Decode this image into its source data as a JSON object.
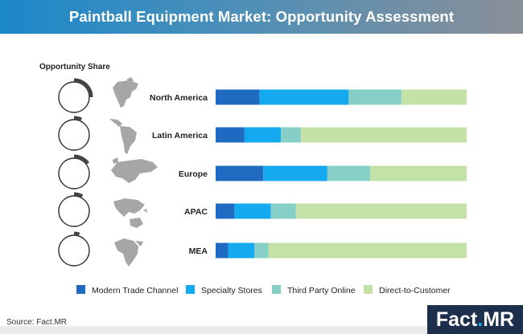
{
  "header": {
    "title": "Paintball Equipment Market: Opportunity Assessment"
  },
  "footer": {
    "source": "Source: Fact.MR",
    "logo_main": "Fact",
    "logo_dot": ".",
    "logo_suffix": "MR"
  },
  "colors": {
    "modern_trade": "#1f6bc1",
    "specialty_stores": "#15aaf0",
    "third_party_online": "#86cfc6",
    "direct_to_customer": "#c4e2a8",
    "ring_track": "#2b2b2b",
    "ring_arc": "#444444",
    "map": "#a6a6a6"
  },
  "chart_data": {
    "type": "bar",
    "stacked": true,
    "orientation": "horizontal",
    "title": "",
    "categories": [
      "North America",
      "Latin America",
      "Europe",
      "APAC",
      "MEA"
    ],
    "xlim": [
      0,
      100
    ],
    "series": [
      {
        "name": "Modern Trade Channel",
        "values": [
          17.5,
          11.5,
          19,
          7.5,
          5
        ],
        "color": "#1f6bc1"
      },
      {
        "name": "Specialty Stores",
        "values": [
          35.5,
          14.5,
          25.5,
          14.5,
          10.5
        ],
        "color": "#15aaf0"
      },
      {
        "name": "Third Party Online",
        "values": [
          21,
          8,
          17,
          10,
          5.5
        ],
        "color": "#86cfc6"
      },
      {
        "name": "Direct-to-Customer",
        "values": [
          26,
          66,
          38.5,
          68,
          79
        ],
        "color": "#c4e2a8"
      }
    ],
    "opportunity_share": {
      "label": "Opportunity Share",
      "values": [
        0.25,
        0.07,
        0.15,
        0.08,
        0.05
      ]
    },
    "legend": {
      "position": "bottom"
    }
  }
}
